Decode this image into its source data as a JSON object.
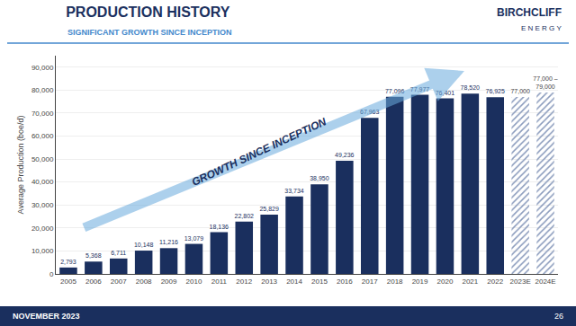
{
  "chart_data": {
    "type": "bar",
    "title": "PRODUCTION HISTORY",
    "subtitle": "SIGNIFICANT GROWTH SINCE INCEPTION",
    "categories": [
      "2005",
      "2006",
      "2007",
      "2008",
      "2009",
      "2010",
      "2011",
      "2012",
      "2013",
      "2014",
      "2015",
      "2016",
      "2017",
      "2018",
      "2019",
      "2020",
      "2021",
      "2022",
      "2023E",
      "2024E"
    ],
    "values": [
      2793,
      5368,
      6711,
      10148,
      11216,
      13079,
      18136,
      22802,
      25829,
      33734,
      38950,
      49236,
      67963,
      77096,
      77977,
      76401,
      78520,
      76925,
      77000,
      79000
    ],
    "value_labels": [
      "2,793",
      "5,368",
      "6,711",
      "10,148",
      "11,216",
      "13,079",
      "18,136",
      "22,802",
      "25,829",
      "33,734",
      "38,950",
      "49,236",
      "67,963",
      "77,096",
      "77,977",
      "76,401",
      "78,520",
      "76,925",
      "77,000",
      "77,000 –\n79,000"
    ],
    "data_labels": true,
    "colors": [
      "#1a2f5e",
      "#1a2f5e",
      "#1a2f5e",
      "#1a2f5e",
      "#1a2f5e",
      "#1a2f5e",
      "#1a2f5e",
      "#1a2f5e",
      "#1a2f5e",
      "#1a2f5e",
      "#1a2f5e",
      "#1a2f5e",
      "#1a2f5e",
      "#1a2f5e",
      "#1a2f5e",
      "#1a2f5e",
      "#1a2f5e",
      "#1a2f5e",
      "#8899bb",
      "#8899bb"
    ],
    "ylabel": "Average Production (boe/d)",
    "ylim": [
      0,
      95000
    ],
    "yticks": [
      0,
      {
        "value": 10000,
        "label": "10,000"
      },
      {
        "value": 20000,
        "label": "20,000"
      },
      {
        "value": 30000,
        "label": "30,000"
      },
      {
        "value": 40000,
        "label": "40,000"
      },
      {
        "value": 50000,
        "label": "50,000"
      },
      {
        "value": 60000,
        "label": "60,000"
      },
      {
        "value": 70000,
        "label": "70,000"
      },
      {
        "value": 80000,
        "label": "80,000"
      },
      {
        "value": 90000,
        "label": "90,000"
      }
    ],
    "grid": true,
    "annotations": [
      "GROWTH SINCE INCEPTION",
      "BIRCHCLIFF",
      "E N E R G Y",
      "NOVEMBER 2023",
      "26"
    ]
  }
}
